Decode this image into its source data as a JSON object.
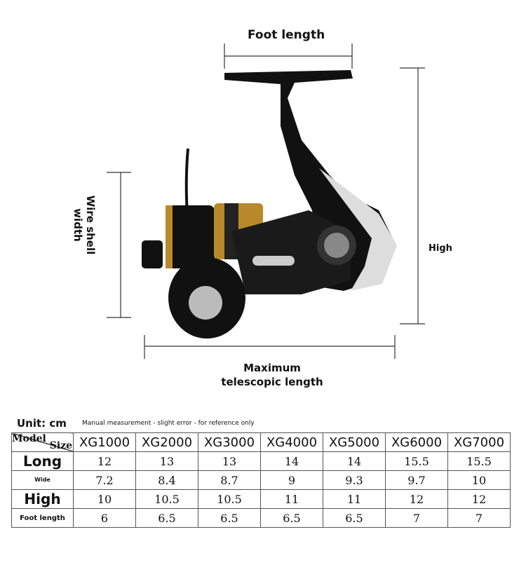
{
  "labels": {
    "foot_length": "Foot length",
    "high": "High",
    "wire_shell_width": "Wire shell width",
    "max_length_1": "Maximum",
    "max_length_2": "telescopic length"
  },
  "unit": "Unit: cm",
  "note": "Manual measurement - slight error - for reference only",
  "table": {
    "corner_model": "Model",
    "corner_size": "Size",
    "models": [
      "XG1000",
      "XG2000",
      "XG3000",
      "XG4000",
      "XG5000",
      "XG6000",
      "XG7000"
    ],
    "rows": [
      {
        "label": "Long",
        "values": [
          "12",
          "13",
          "13",
          "14",
          "14",
          "15.5",
          "15.5"
        ]
      },
      {
        "label": "Wide",
        "values": [
          "7.2",
          "8.4",
          "8.7",
          "9",
          "9.3",
          "9.7",
          "10"
        ]
      },
      {
        "label": "High",
        "values": [
          "10",
          "10.5",
          "10.5",
          "11",
          "11",
          "12",
          "12"
        ]
      },
      {
        "label": "Foot length",
        "values": [
          "6",
          "6.5",
          "6.5",
          "6.5",
          "6.5",
          "7",
          "7"
        ]
      }
    ]
  },
  "colors": {
    "reel_black": "#111111",
    "reel_gold": "#b8892a",
    "reel_silver": "#d8d8d8"
  }
}
